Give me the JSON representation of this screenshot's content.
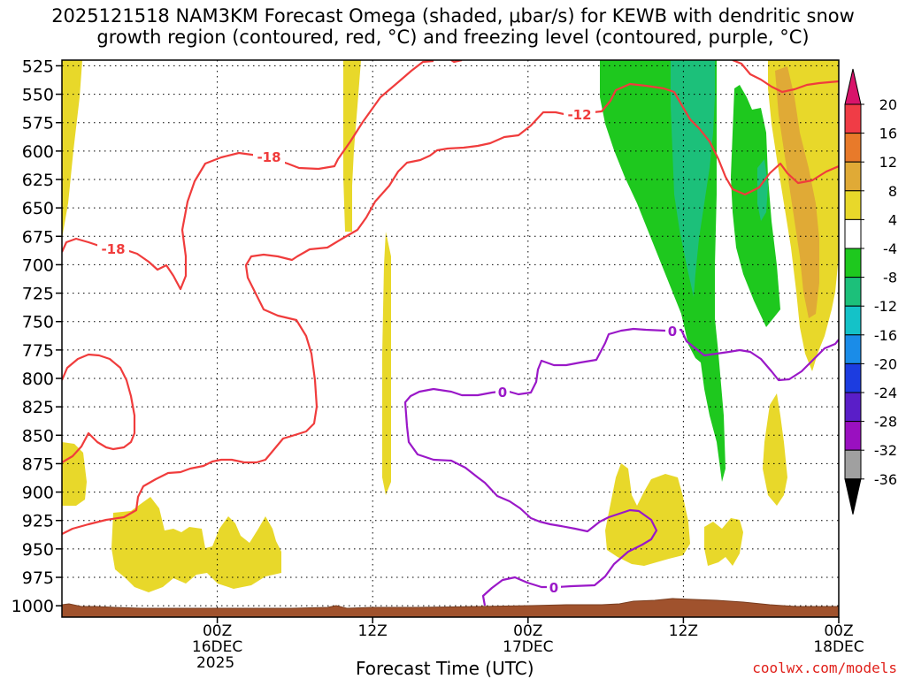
{
  "title": {
    "line1": "2025121518 NAM3KM Forecast Omega (shaded, μbar/s) for KEWB with dendritic snow",
    "line2": "growth region (contoured, red, °C) and freezing level (contoured, purple, °C)"
  },
  "credit": "coolwx.com/models",
  "chart_data": {
    "type": "contour",
    "xlabel": "Forecast Time (UTC)",
    "ylabel": "",
    "x_range_hours": [
      -10,
      40
    ],
    "y_range_mb": [
      520,
      1010
    ],
    "y_ticks": [
      525,
      550,
      575,
      600,
      625,
      650,
      675,
      700,
      725,
      750,
      775,
      800,
      825,
      850,
      875,
      900,
      925,
      950,
      975,
      1000
    ],
    "x_ticks": [
      {
        "h": 0,
        "lines": [
          "00Z",
          "16DEC",
          "2025"
        ]
      },
      {
        "h": 10,
        "lines": [
          "12Z"
        ]
      },
      {
        "h": 20,
        "lines": [
          "00Z",
          "17DEC"
        ]
      },
      {
        "h": 30,
        "lines": [
          "12Z"
        ]
      },
      {
        "h": 40,
        "lines": [
          "00Z",
          "18DEC"
        ]
      }
    ],
    "colorbar": {
      "labels": [
        "20",
        "16",
        "12",
        "8",
        "4",
        "-4",
        "-8",
        "-12",
        "-16",
        "-20",
        "-24",
        "-28",
        "-32",
        "-36"
      ],
      "colors": [
        "#f03c46",
        "#e87a2a",
        "#e0aa36",
        "#e8d82a",
        "#ffffff",
        "#1ec81e",
        "#1cc07a",
        "#14c2c8",
        "#1a8ce8",
        "#1c3ce0",
        "#5a1ec8",
        "#9a10c0",
        "#a0a0a0"
      ],
      "top_arrow_color": "#d8146a",
      "bottom_arrow_color": "#000000"
    },
    "contour_labels": {
      "dgz": [
        "-18",
        "-18",
        "-12"
      ],
      "freezing": [
        "0",
        "0",
        "0"
      ]
    },
    "colors": {
      "dgz_line": "#f03c3c",
      "freezing_line": "#9a18c8",
      "terrain": "#a0522d",
      "omega_pos": "#e8d82a",
      "omega_pos_strong": "#e0aa36",
      "omega_neg": "#1ec81e",
      "omega_neg_strong": "#1cc07a"
    }
  }
}
